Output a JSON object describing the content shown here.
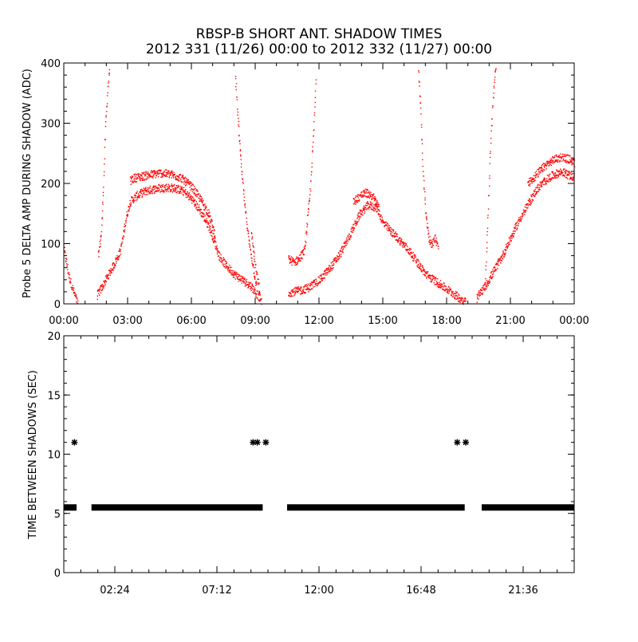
{
  "title_line1": "RBSP-B SHORT ANT. SHADOW TIMES",
  "title_line2": "2012 331 (11/26) 00:00 to 2012 332 (11/27) 00:00",
  "colors": {
    "top_points": "#ff0000",
    "bottom_points": "#000000",
    "axis": "#000000",
    "background": "#ffffff"
  },
  "chart_data": [
    {
      "type": "scatter",
      "panel": "top",
      "title": "",
      "xlabel": "",
      "ylabel": "Probe 5 DELTA AMP DURING SHADOW (ADC)",
      "xlim": [
        0,
        24
      ],
      "ylim": [
        0,
        400
      ],
      "x_unit": "hours since 2012-11-26 00:00",
      "x_tick_labels": [
        "00:00",
        "03:00",
        "06:00",
        "09:00",
        "12:00",
        "15:00",
        "18:00",
        "21:00",
        "00:00"
      ],
      "y_ticks": [
        0,
        100,
        200,
        300,
        400
      ],
      "grid": false,
      "series": [
        {
          "color": "#ff0000",
          "segments": [
            {
              "x": [
                0.0,
                0.2,
                0.4,
                0.55,
                0.65
              ],
              "y": [
                90,
                50,
                25,
                10,
                0
              ]
            },
            {
              "x": [
                1.6,
                1.75,
                1.85,
                1.95,
                2.05,
                2.15
              ],
              "y": [
                80,
                120,
                200,
                300,
                360,
                400
              ]
            },
            {
              "x": [
                1.55,
                1.8,
                2.1,
                2.4,
                2.65,
                2.8,
                2.95,
                3.1,
                3.4,
                3.8,
                4.3,
                4.8,
                5.2,
                5.6,
                6.0,
                6.4,
                6.8,
                7.1,
                7.3,
                7.6,
                8.0,
                8.4,
                8.8,
                9.1,
                9.3
              ],
              "y": [
                15,
                30,
                50,
                70,
                90,
                120,
                150,
                170,
                180,
                188,
                192,
                194,
                193,
                188,
                175,
                155,
                130,
                100,
                80,
                65,
                50,
                40,
                30,
                15,
                5
              ]
            },
            {
              "x": [
                3.1,
                3.3,
                3.6,
                4.0,
                4.5,
                5.0,
                5.5,
                6.0,
                6.4,
                6.8,
                7.1
              ],
              "y": [
                205,
                210,
                212,
                215,
                218,
                216,
                210,
                195,
                175,
                150,
                115
              ]
            },
            {
              "x": [
                8.05,
                8.15,
                8.3,
                8.5,
                8.7,
                8.9,
                9.05
              ],
              "y": [
                380,
                320,
                240,
                160,
                100,
                60,
                25
              ]
            },
            {
              "x": [
                8.8,
                8.9,
                9.0,
                9.1,
                9.2
              ],
              "y": [
                120,
                90,
                60,
                40,
                20
              ]
            },
            {
              "x": [
                10.55,
                10.8,
                11.05,
                11.3,
                11.55,
                11.75,
                11.85
              ],
              "y": [
                75,
                70,
                75,
                90,
                180,
                300,
                380
              ]
            },
            {
              "x": [
                10.55,
                11.0,
                11.5,
                12.0,
                12.5,
                13.0,
                13.5,
                13.9,
                14.3,
                14.7,
                15.0,
                15.4,
                15.8,
                16.2,
                16.6,
                17.0,
                17.4,
                17.8,
                18.2,
                18.6,
                18.9
              ],
              "y": [
                20,
                22,
                28,
                40,
                60,
                85,
                120,
                150,
                165,
                160,
                135,
                120,
                105,
                90,
                70,
                50,
                40,
                30,
                20,
                10,
                5
              ]
            },
            {
              "x": [
                13.6,
                13.9,
                14.2,
                14.5,
                14.8
              ],
              "y": [
                170,
                180,
                185,
                180,
                160
              ]
            },
            {
              "x": [
                16.65,
                16.75,
                16.85,
                17.0,
                17.15,
                17.3,
                17.45,
                17.6
              ],
              "y": [
                400,
                330,
                240,
                150,
                110,
                100,
                110,
                90
              ]
            },
            {
              "x": [
                19.4,
                19.8,
                20.2,
                20.6,
                21.0,
                21.4,
                21.8,
                22.2,
                22.6,
                23.0,
                23.4,
                23.7,
                24.0
              ],
              "y": [
                10,
                30,
                55,
                80,
                110,
                140,
                165,
                190,
                205,
                215,
                220,
                215,
                210
              ]
            },
            {
              "x": [
                19.8,
                19.9,
                20.0,
                20.1,
                20.2,
                20.3
              ],
              "y": [
                40,
                120,
                220,
                300,
                360,
                400
              ]
            },
            {
              "x": [
                21.8,
                22.2,
                22.6,
                23.0,
                23.4,
                23.8,
                24.0
              ],
              "y": [
                200,
                215,
                230,
                240,
                245,
                240,
                235
              ]
            }
          ]
        }
      ]
    },
    {
      "type": "scatter",
      "panel": "bottom",
      "title": "",
      "xlabel": "",
      "ylabel": "TIME BETWEEN SHADOWS (SEC)",
      "xlim": [
        0,
        24
      ],
      "ylim": [
        0,
        20
      ],
      "x_unit": "hours since 2012-11-26 00:00",
      "x_tick_labels": [
        "02:24",
        "07:12",
        "12:00",
        "16:48",
        "21:36"
      ],
      "x_tick_values": [
        2.4,
        7.2,
        12.0,
        16.8,
        21.6
      ],
      "y_ticks": [
        0,
        5,
        10,
        15,
        20
      ],
      "grid": false,
      "series": [
        {
          "color": "#000000",
          "bands_y55": [
            [
              0.0,
              0.6
            ],
            [
              1.3,
              9.35
            ],
            [
              10.5,
              18.85
            ],
            [
              19.65,
              24.0
            ]
          ],
          "points_y11": [
            0.5,
            8.9,
            9.1,
            9.5,
            18.5,
            18.9
          ]
        }
      ]
    }
  ]
}
